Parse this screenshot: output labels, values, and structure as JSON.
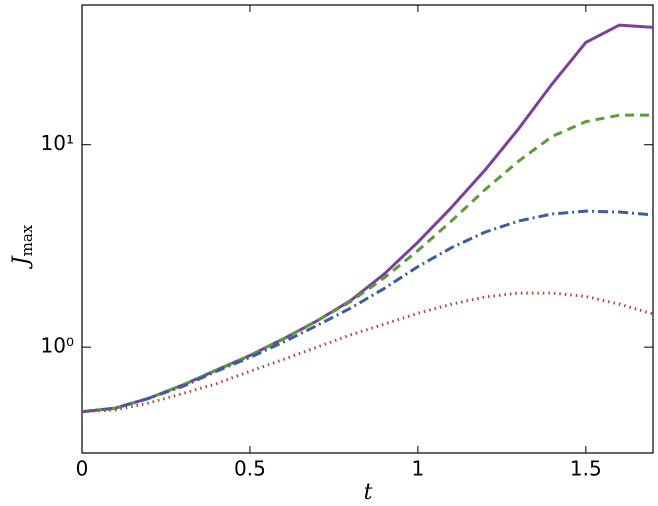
{
  "chart_data": {
    "type": "line",
    "xlabel": "t",
    "ylabel": "J",
    "ylabel_subscript": "max",
    "x": [
      0,
      0.1,
      0.2,
      0.3,
      0.4,
      0.5,
      0.6,
      0.7,
      0.8,
      0.9,
      1.0,
      1.1,
      1.2,
      1.3,
      1.4,
      1.5,
      1.6,
      1.7
    ],
    "xlim": [
      0,
      1.7
    ],
    "xticks": [
      0,
      0.5,
      1,
      1.5
    ],
    "ylim": [
      0.3,
      49
    ],
    "yscale": "log",
    "yticks": [
      {
        "value": 1,
        "label": "10⁰"
      },
      {
        "value": 10,
        "label": "10¹"
      }
    ],
    "series": [
      {
        "color": "#7b3fa0",
        "dash": "none",
        "values": [
          0.48,
          0.5,
          0.56,
          0.65,
          0.77,
          0.91,
          1.1,
          1.35,
          1.7,
          2.3,
          3.3,
          4.9,
          7.5,
          12,
          20,
          32,
          39,
          38
        ]
      },
      {
        "color": "#5a9e33",
        "dash": "9,6",
        "values": [
          0.48,
          0.5,
          0.56,
          0.65,
          0.77,
          0.91,
          1.1,
          1.35,
          1.68,
          2.2,
          3.0,
          4.2,
          6.0,
          8.3,
          11,
          13,
          14,
          14
        ]
      },
      {
        "color": "#3a5f9c",
        "dash": "10,4,2,4",
        "values": [
          0.48,
          0.5,
          0.56,
          0.64,
          0.76,
          0.89,
          1.06,
          1.28,
          1.56,
          1.95,
          2.5,
          3.1,
          3.7,
          4.2,
          4.55,
          4.7,
          4.65,
          4.5
        ]
      },
      {
        "color": "#b5462f",
        "dash": "1.5,4",
        "values": [
          0.48,
          0.49,
          0.53,
          0.59,
          0.66,
          0.76,
          0.87,
          1.0,
          1.15,
          1.3,
          1.47,
          1.63,
          1.77,
          1.85,
          1.85,
          1.78,
          1.63,
          1.46
        ]
      }
    ]
  }
}
